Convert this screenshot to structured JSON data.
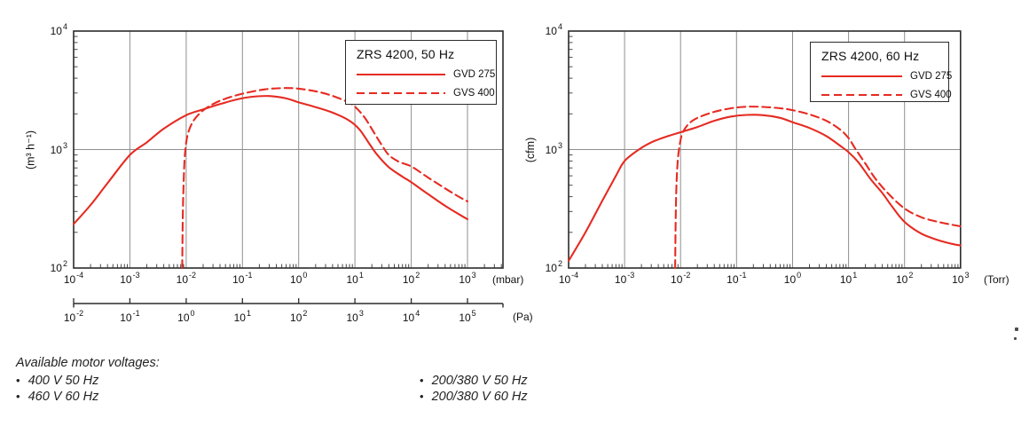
{
  "colors": {
    "curve_red": "#e62b22",
    "grid": "#8f8f8f",
    "frame": "#2b2b2b",
    "text": "#111111"
  },
  "footer": {
    "heading": "Available motor voltages:",
    "bullet": "•",
    "columns": [
      {
        "items": [
          "400 V 50 Hz",
          "460 V 60 Hz"
        ]
      },
      {
        "items": [
          "200/380 V 50 Hz",
          "200/380 V 60 Hz"
        ]
      }
    ]
  },
  "chart_data": [
    {
      "type": "line",
      "title": "ZRS 4200, 50 Hz",
      "ylabel": "(m³ h⁻¹)",
      "x_unit": "(mbar)",
      "x2_unit": "(Pa)",
      "x_scale": "log",
      "y_scale": "log",
      "x_min_exp": -4,
      "x_tick_exponents": [
        -4,
        -3,
        -2,
        -1,
        0,
        1,
        2,
        3
      ],
      "x2_min_exp": -2,
      "x2_tick_exponents": [
        -2,
        -1,
        0,
        1,
        2,
        3,
        4,
        5
      ],
      "y_tick_exponents": [
        2,
        3,
        4
      ],
      "ylim": [
        100,
        10000
      ],
      "grid": true,
      "legend_position": "top-right",
      "series": [
        {
          "name": "GVD 275",
          "line": "solid",
          "points": [
            [
              0.0001,
              235
            ],
            [
              0.0002,
              340
            ],
            [
              0.0004,
              520
            ],
            [
              0.001,
              900
            ],
            [
              0.002,
              1150
            ],
            [
              0.004,
              1500
            ],
            [
              0.01,
              1950
            ],
            [
              0.02,
              2180
            ],
            [
              0.04,
              2420
            ],
            [
              0.08,
              2650
            ],
            [
              0.15,
              2790
            ],
            [
              0.3,
              2830
            ],
            [
              0.6,
              2700
            ],
            [
              1,
              2500
            ],
            [
              2,
              2280
            ],
            [
              4,
              2050
            ],
            [
              8,
              1750
            ],
            [
              12,
              1480
            ],
            [
              18,
              1120
            ],
            [
              25,
              900
            ],
            [
              40,
              710
            ],
            [
              70,
              590
            ],
            [
              100,
              530
            ],
            [
              200,
              420
            ],
            [
              400,
              335
            ],
            [
              700,
              285
            ],
            [
              1000,
              258
            ]
          ]
        },
        {
          "name": "GVS 400",
          "line": "dashed",
          "points": [
            [
              0.0085,
              100
            ],
            [
              0.0087,
              260
            ],
            [
              0.009,
              520
            ],
            [
              0.0095,
              900
            ],
            [
              0.0105,
              1300
            ],
            [
              0.013,
              1700
            ],
            [
              0.018,
              2050
            ],
            [
              0.026,
              2330
            ],
            [
              0.04,
              2580
            ],
            [
              0.07,
              2830
            ],
            [
              0.12,
              3020
            ],
            [
              0.25,
              3220
            ],
            [
              0.5,
              3300
            ],
            [
              0.9,
              3280
            ],
            [
              1.8,
              3130
            ],
            [
              3.5,
              2900
            ],
            [
              7,
              2550
            ],
            [
              10,
              2300
            ],
            [
              15,
              1850
            ],
            [
              22,
              1380
            ],
            [
              30,
              1090
            ],
            [
              40,
              900
            ],
            [
              60,
              790
            ],
            [
              100,
              720
            ],
            [
              200,
              580
            ],
            [
              400,
              470
            ],
            [
              700,
              400
            ],
            [
              1000,
              365
            ]
          ]
        }
      ]
    },
    {
      "type": "line",
      "title": "ZRS 4200, 60 Hz",
      "ylabel": "(cfm)",
      "x_unit": "(Torr)",
      "x_scale": "log",
      "y_scale": "log",
      "x_min_exp": -4,
      "x_tick_exponents": [
        -4,
        -3,
        -2,
        -1,
        0,
        1,
        2,
        3
      ],
      "y_tick_exponents": [
        2,
        3,
        4
      ],
      "ylim": [
        100,
        10000
      ],
      "grid": true,
      "legend_position": "top-right",
      "series": [
        {
          "name": "GVD 275",
          "line": "solid",
          "points": [
            [
              0.0001,
              115
            ],
            [
              0.0002,
              200
            ],
            [
              0.0004,
              370
            ],
            [
              0.0007,
              600
            ],
            [
              0.001,
              800
            ],
            [
              0.0018,
              1000
            ],
            [
              0.003,
              1150
            ],
            [
              0.006,
              1300
            ],
            [
              0.01,
              1400
            ],
            [
              0.02,
              1550
            ],
            [
              0.04,
              1750
            ],
            [
              0.08,
              1900
            ],
            [
              0.15,
              1960
            ],
            [
              0.3,
              1950
            ],
            [
              0.6,
              1850
            ],
            [
              1,
              1700
            ],
            [
              2,
              1520
            ],
            [
              4,
              1300
            ],
            [
              7,
              1080
            ],
            [
              10,
              950
            ],
            [
              15,
              780
            ],
            [
              25,
              560
            ],
            [
              40,
              430
            ],
            [
              60,
              330
            ],
            [
              100,
              245
            ],
            [
              200,
              195
            ],
            [
              400,
              172
            ],
            [
              700,
              160
            ],
            [
              1000,
              155
            ]
          ]
        },
        {
          "name": "GVS 400",
          "line": "dashed",
          "points": [
            [
              0.008,
              100
            ],
            [
              0.0082,
              280
            ],
            [
              0.0085,
              550
            ],
            [
              0.009,
              850
            ],
            [
              0.0098,
              1150
            ],
            [
              0.011,
              1400
            ],
            [
              0.014,
              1650
            ],
            [
              0.02,
              1850
            ],
            [
              0.04,
              2080
            ],
            [
              0.08,
              2230
            ],
            [
              0.15,
              2300
            ],
            [
              0.3,
              2290
            ],
            [
              0.6,
              2230
            ],
            [
              1,
              2150
            ],
            [
              2,
              1980
            ],
            [
              4,
              1750
            ],
            [
              7,
              1480
            ],
            [
              10,
              1250
            ],
            [
              13.5,
              1000
            ],
            [
              20,
              760
            ],
            [
              30,
              570
            ],
            [
              50,
              430
            ],
            [
              100,
              318
            ],
            [
              200,
              268
            ],
            [
              400,
              245
            ],
            [
              700,
              232
            ],
            [
              1000,
              225
            ]
          ]
        }
      ]
    }
  ]
}
